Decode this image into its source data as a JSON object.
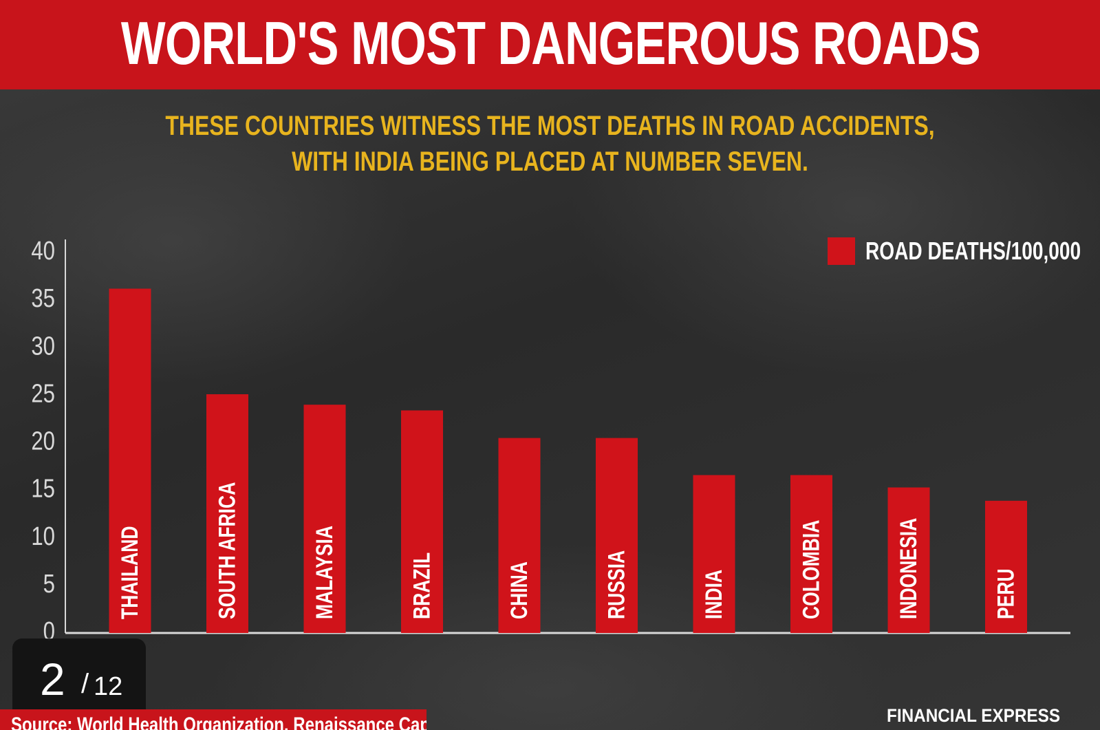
{
  "header": {
    "title": "WORLD'S MOST DANGEROUS ROADS",
    "subtitle_line1": "THESE COUNTRIES WITNESS THE MOST DEATHS IN ROAD ACCIDENTS,",
    "subtitle_line2": "WITH INDIA BEING PLACED AT NUMBER SEVEN."
  },
  "colors": {
    "banner": "#c8141b",
    "bar": "#d0131a",
    "subtitle": "#e8b41e",
    "axis": "#d9d9d9"
  },
  "chart_data": {
    "type": "bar",
    "categories": [
      "THAILAND",
      "SOUTH AFRICA",
      "MALAYSIA",
      "BRAZIL",
      "CHINA",
      "RUSSIA",
      "INDIA",
      "COLOMBIA",
      "INDONESIA",
      "PERU"
    ],
    "series": [
      {
        "name": "ROAD DEATHS/100,000",
        "values": [
          36.2,
          25.1,
          24.0,
          23.4,
          20.5,
          20.5,
          16.6,
          16.6,
          15.3,
          13.9
        ]
      }
    ],
    "ylim": [
      0,
      40
    ],
    "yticks": [
      0,
      5,
      10,
      15,
      20,
      25,
      30,
      35,
      40
    ],
    "legend_position": "top-right",
    "category_labels_inside_bars": true,
    "grid": false
  },
  "legend": {
    "label": "ROAD DEATHS/100,000"
  },
  "pager": {
    "current": "2",
    "separator": "/",
    "total": "12"
  },
  "footer": {
    "source": "Source: World Health Organization, Renaissance Capital",
    "brand": "FINANCIAL EXPRESS"
  }
}
